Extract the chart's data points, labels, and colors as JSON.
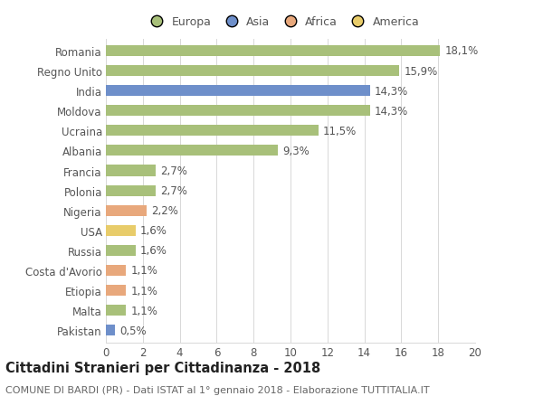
{
  "countries": [
    "Romania",
    "Regno Unito",
    "India",
    "Moldova",
    "Ucraina",
    "Albania",
    "Francia",
    "Polonia",
    "Nigeria",
    "USA",
    "Russia",
    "Costa d'Avorio",
    "Etiopia",
    "Malta",
    "Pakistan"
  ],
  "values": [
    18.1,
    15.9,
    14.3,
    14.3,
    11.5,
    9.3,
    2.7,
    2.7,
    2.2,
    1.6,
    1.6,
    1.1,
    1.1,
    1.1,
    0.5
  ],
  "labels": [
    "18,1%",
    "15,9%",
    "14,3%",
    "14,3%",
    "11,5%",
    "9,3%",
    "2,7%",
    "2,7%",
    "2,2%",
    "1,6%",
    "1,6%",
    "1,1%",
    "1,1%",
    "1,1%",
    "0,5%"
  ],
  "continents": [
    "Europa",
    "Europa",
    "Asia",
    "Europa",
    "Europa",
    "Europa",
    "Europa",
    "Europa",
    "Africa",
    "America",
    "Europa",
    "Africa",
    "Africa",
    "Europa",
    "Asia"
  ],
  "colors": {
    "Europa": "#a8c07a",
    "Asia": "#6e8fca",
    "Africa": "#e8a87c",
    "America": "#e8cc6a"
  },
  "title": "Cittadini Stranieri per Cittadinanza - 2018",
  "subtitle": "COMUNE DI BARDI (PR) - Dati ISTAT al 1° gennaio 2018 - Elaborazione TUTTITALIA.IT",
  "xlim": [
    0,
    20
  ],
  "xticks": [
    0,
    2,
    4,
    6,
    8,
    10,
    12,
    14,
    16,
    18,
    20
  ],
  "background_color": "#ffffff",
  "grid_color": "#d8d8d8",
  "bar_height": 0.55,
  "label_fontsize": 8.5,
  "tick_fontsize": 8.5,
  "title_fontsize": 10.5,
  "subtitle_fontsize": 8
}
